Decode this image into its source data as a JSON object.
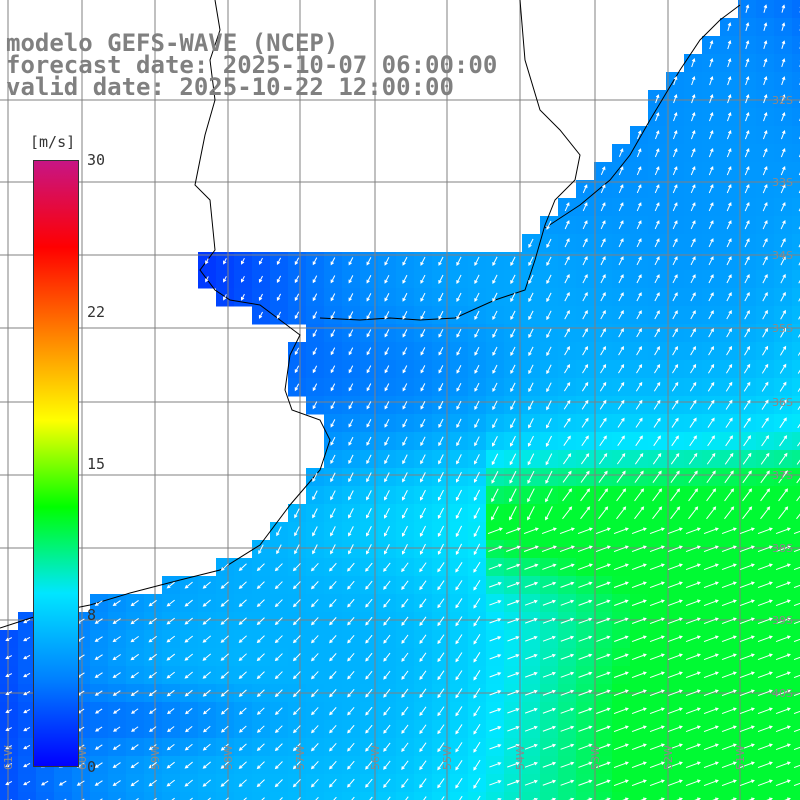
{
  "header": {
    "line1": "modelo GEFS-WAVE (NCEP)",
    "line2": "forecast date: 2025-10-07 06:00:00",
    "line3": "valid date: 2025-10-22 12:00:00"
  },
  "colorbar": {
    "unit": "[m/s]",
    "min": 0,
    "max": 30,
    "ticks": [
      "30",
      "22",
      "15",
      "8",
      "0"
    ],
    "tick_values": [
      30,
      22.5,
      15,
      7.5,
      0
    ],
    "colors": [
      "#0000ff",
      "#0080ff",
      "#00e6ff",
      "#00ff00",
      "#ffff00",
      "#ff8000",
      "#ff0000",
      "#c71585"
    ]
  },
  "map": {
    "lat_labels": [
      "32S",
      "33S",
      "34S",
      "35S",
      "36S",
      "37S",
      "38S",
      "39S",
      "40S"
    ],
    "lon_labels": [
      "61W",
      "60W",
      "59W",
      "58W",
      "57W",
      "56W",
      "55W",
      "54W",
      "53W",
      "52W",
      "51W"
    ],
    "colors": {
      "land": "#ffffff",
      "grid": "#808080",
      "coast": "#000000",
      "arrow": "#ffffff"
    }
  }
}
